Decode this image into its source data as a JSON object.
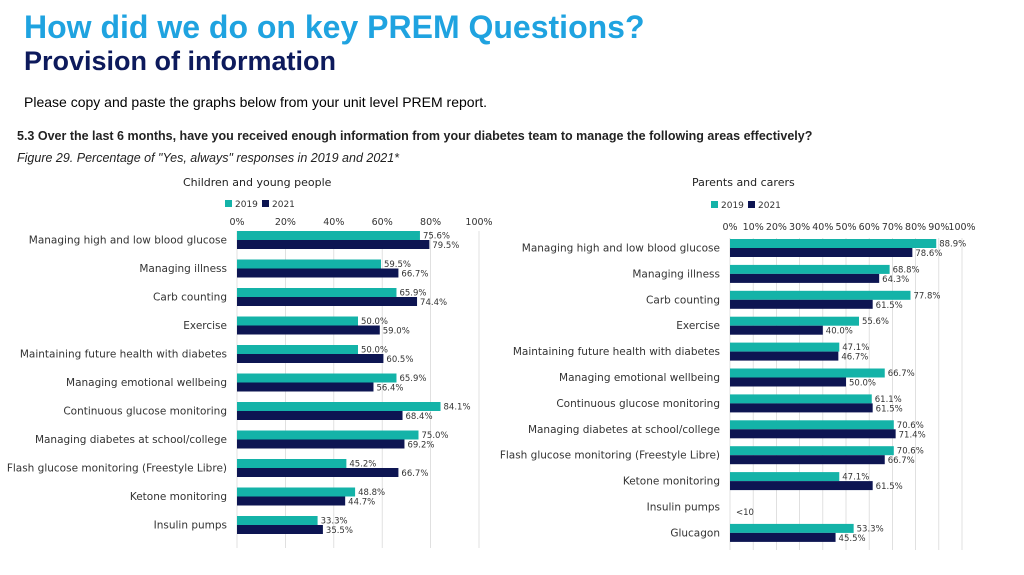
{
  "slide": {
    "title": "How did we do on key PREM Questions?",
    "subtitle": "Provision of information",
    "instruction": "Please copy and paste the graphs below from your unit level PREM report."
  },
  "figure": {
    "question": "5.3 Over the last 6 months, have you received enough information from your diabetes team to manage the following areas effectively?",
    "caption": "Figure 29. Percentage of \"Yes, always\" responses in 2019 and 2021*"
  },
  "colors": {
    "series_2019": "#14b3a8",
    "series_2021": "#0d1552",
    "grid": "#d9d9d9",
    "label": "#333333"
  },
  "chart_data": [
    {
      "type": "bar",
      "orientation": "horizontal",
      "title": "Children and young people",
      "xlim": [
        0,
        100
      ],
      "xticks": [
        "0%",
        "20%",
        "40%",
        "60%",
        "80%",
        "100%"
      ],
      "tick_values": [
        0,
        20,
        40,
        60,
        80,
        100
      ],
      "legend": [
        "2019",
        "2021"
      ],
      "categories": [
        "Managing high and low blood glucose",
        "Managing illness",
        "Carb counting",
        "Exercise",
        "Maintaining future health with diabetes",
        "Managing emotional wellbeing",
        "Continuous glucose monitoring",
        "Managing diabetes at school/college",
        "Flash glucose monitoring (Freestyle Libre)",
        "Ketone monitoring",
        "Insulin pumps"
      ],
      "series": [
        {
          "name": "2019",
          "values": [
            75.6,
            59.5,
            65.9,
            50.0,
            50.0,
            65.9,
            84.1,
            75.0,
            45.2,
            48.8,
            33.3
          ],
          "labels": [
            "75.6%",
            "59.5%",
            "65.9%",
            "50.0%",
            "50.0%",
            "65.9%",
            "84.1%",
            "75.0%",
            "45.2%",
            "48.8%",
            "33.3%"
          ]
        },
        {
          "name": "2021",
          "values": [
            79.5,
            66.7,
            74.4,
            59.0,
            60.5,
            56.4,
            68.4,
            69.2,
            66.7,
            44.7,
            35.5
          ],
          "labels": [
            "79.5%",
            "66.7%",
            "74.4%",
            "59.0%",
            "60.5%",
            "56.4%",
            "68.4%",
            "69.2%",
            "66.7%",
            "44.7%",
            "35.5%"
          ]
        }
      ]
    },
    {
      "type": "bar",
      "orientation": "horizontal",
      "title": "Parents and carers",
      "xlim": [
        0,
        100
      ],
      "xticks": [
        "0%",
        "10%",
        "20%",
        "30%",
        "40%",
        "50%",
        "60%",
        "70%",
        "80%",
        "90%",
        "100%"
      ],
      "tick_values": [
        0,
        10,
        20,
        30,
        40,
        50,
        60,
        70,
        80,
        90,
        100
      ],
      "legend": [
        "2019",
        "2021"
      ],
      "categories": [
        "Managing high and low blood glucose",
        "Managing illness",
        "Carb counting",
        "Exercise",
        "Maintaining future health with diabetes",
        "Managing emotional wellbeing",
        "Continuous glucose monitoring",
        "Managing diabetes at school/college",
        "Flash glucose monitoring (Freestyle Libre)",
        "Ketone monitoring",
        "Insulin pumps",
        "Glucagon"
      ],
      "series": [
        {
          "name": "2019",
          "values": [
            88.9,
            68.8,
            77.8,
            55.6,
            47.1,
            66.7,
            61.1,
            70.6,
            70.6,
            47.1,
            null,
            53.3
          ],
          "labels": [
            "88.9%",
            "68.8%",
            "77.8%",
            "55.6%",
            "47.1%",
            "66.7%",
            "61.1%",
            "70.6%",
            "70.6%",
            "47.1%",
            "<10",
            "53.3%"
          ]
        },
        {
          "name": "2021",
          "values": [
            78.6,
            64.3,
            61.5,
            40.0,
            46.7,
            50.0,
            61.5,
            71.4,
            66.7,
            61.5,
            null,
            45.5
          ],
          "labels": [
            "78.6%",
            "64.3%",
            "61.5%",
            "40.0%",
            "46.7%",
            "50.0%",
            "61.5%",
            "71.4%",
            "66.7%",
            "61.5%",
            "",
            "45.5%"
          ]
        }
      ]
    }
  ]
}
